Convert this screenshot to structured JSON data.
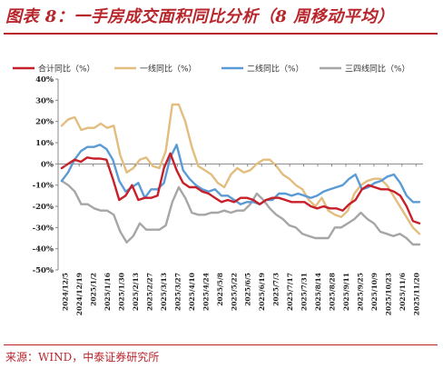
{
  "header": {
    "title": "图表 8：一手房成交面积同比分析（8 周移动平均）"
  },
  "footer": {
    "source": "来源：WIND，中泰证券研究所"
  },
  "chart_data": {
    "type": "line",
    "title": "",
    "xlabel": "",
    "ylabel": "",
    "ylim": [
      -50,
      40
    ],
    "yticks": [
      "40%",
      "30%",
      "20%",
      "10%",
      "0%",
      "-10%",
      "-20%",
      "-30%",
      "-40%",
      "-50%"
    ],
    "ytick_values": [
      40,
      30,
      20,
      10,
      0,
      -10,
      -20,
      -30,
      -40,
      -50
    ],
    "grid": false,
    "legend": "top",
    "xtick_labels": [
      "2024/12/5",
      "2024/12/19",
      "2025/1/2",
      "2025/1/16",
      "2025/1/30",
      "2025/2/13",
      "2025/2/27",
      "2025/3/13",
      "2025/3/27",
      "2025/4/10",
      "2025/4/24",
      "2025/5/8",
      "2025/5/22",
      "2025/6/5",
      "2025/6/19",
      "2025/7/3",
      "2025/7/17",
      "2025/7/31",
      "2025/8/14",
      "2025/8/28",
      "2025/9/11",
      "2025/9/25",
      "2025/10/9",
      "2025/10/23",
      "2025/11/6",
      "2025/11/20"
    ],
    "series": [
      {
        "name": "合计同比（%）",
        "color": "#c8202a",
        "values": [
          -2,
          0,
          2,
          1,
          3,
          2.5,
          2.5,
          2,
          -7,
          -17,
          -15,
          -10,
          -17,
          -16,
          -16,
          -15,
          -2,
          5,
          -3,
          -9,
          -11,
          -11,
          -13,
          -14,
          -16,
          -18,
          -17,
          -18,
          -16,
          -16,
          -17,
          -19,
          -17,
          -16,
          -16,
          -17,
          -18,
          -18,
          -18,
          -20,
          -21,
          -20,
          -21,
          -21,
          -22,
          -19,
          -17,
          -12,
          -10,
          -11,
          -12,
          -12,
          -13,
          -15,
          -20,
          -27,
          -28
        ]
      },
      {
        "name": "一线同比（%）",
        "color": "#e3bd7e",
        "values": [
          18,
          21,
          22,
          16,
          17,
          17,
          19,
          17,
          18,
          4,
          -4,
          -2,
          2,
          3,
          -1,
          -2,
          6,
          28,
          28,
          20,
          8,
          -1,
          -3,
          -5,
          -9,
          -11,
          -5,
          -2,
          -4,
          -3,
          0,
          2,
          2,
          -1,
          -5,
          -7,
          -10,
          -12,
          -17,
          -20,
          -16,
          -22,
          -24,
          -25,
          -22,
          -14,
          -10,
          -8,
          -7,
          -7,
          -10,
          -15,
          -20,
          -25,
          -30,
          -33
        ]
      },
      {
        "name": "二线同比（%）",
        "color": "#5b9bd5",
        "values": [
          -8,
          -4,
          2,
          6,
          8,
          8,
          9,
          7,
          2,
          -8,
          -13,
          -11,
          -9,
          -16,
          -12,
          -12,
          -9,
          3,
          9,
          -3,
          -7,
          -10,
          -12,
          -13,
          -12,
          -15,
          -15,
          -17,
          -19,
          -18,
          -18,
          -19,
          -17,
          -17,
          -14,
          -14,
          -15,
          -14,
          -15,
          -16,
          -15,
          -13,
          -12,
          -11,
          -10,
          -7,
          -5,
          -12,
          -11,
          -9,
          -8,
          -6,
          -5,
          -9,
          -15,
          -18,
          -18
        ]
      },
      {
        "name": "三四线同比（%）",
        "color": "#a6a6a6",
        "values": [
          -8,
          -10,
          -13,
          -19,
          -19,
          -21,
          -22,
          -22,
          -24,
          -32,
          -37,
          -34,
          -28,
          -31,
          -31,
          -31,
          -29,
          -18,
          -11,
          -16,
          -23,
          -24,
          -24,
          -23,
          -23,
          -22,
          -23,
          -22,
          -22,
          -19,
          -14,
          -17,
          -21,
          -24,
          -26,
          -29,
          -30,
          -33,
          -34,
          -35,
          -35,
          -35,
          -30,
          -30,
          -28,
          -26,
          -23,
          -26,
          -28,
          -32,
          -33,
          -34,
          -33,
          -35,
          -38,
          -38
        ]
      }
    ]
  }
}
